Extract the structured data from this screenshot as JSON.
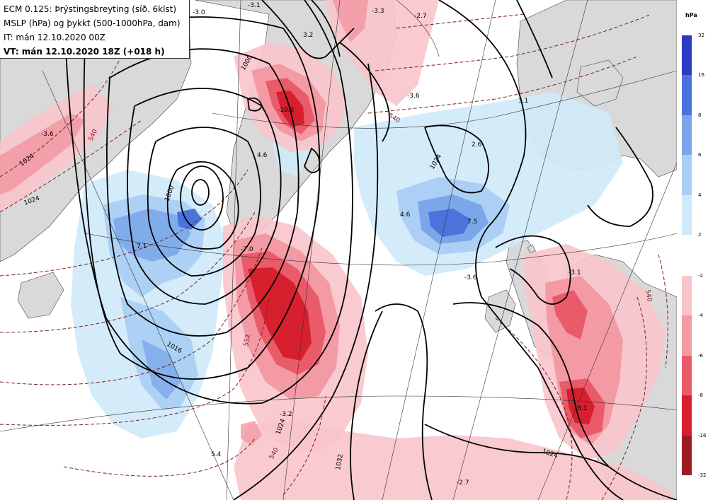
{
  "header": {
    "line1": "ECM 0.125: Þrýstingsbreyting (síð. 6klst)",
    "line2": "MSLP (hPa) og þykkt (500-1000hPa, dam)",
    "line3": "IT: mán 12.10.2020 00Z",
    "line4": "VT: mán 12.10.2020 18Z (+018 h)"
  },
  "legend": {
    "unit": "hPa",
    "rising_scale": {
      "colors": [
        "#2b3bc4",
        "#4a73dc",
        "#7ba7ea",
        "#a9cef4",
        "#cfe9fa"
      ],
      "ticks": [
        "32",
        "16",
        "8",
        "6",
        "4",
        "2"
      ]
    },
    "falling_scale": {
      "colors": [
        "#f8c4cb",
        "#f39aa5",
        "#ea5b6a",
        "#d6202e",
        "#9b1c22"
      ],
      "ticks": [
        "-2",
        "-4",
        "-6",
        "-8",
        "-16",
        "-32"
      ]
    }
  },
  "map_labels": {
    "isobars": [
      "1000",
      "1000",
      "1016",
      "1024",
      "1024",
      "1024",
      "1024",
      "1032",
      "1024"
    ],
    "thickness": [
      "540",
      "540",
      "552",
      "540",
      "540"
    ],
    "tendencies": [
      "-3.0",
      "-3.1",
      "-3.3",
      "-2.7",
      "3.2",
      "-3.6",
      "-3.6",
      "-10.6",
      "4.6",
      "3.1",
      "2.6",
      "7.1",
      "-7.0",
      "4.6",
      "7.5",
      "-3.6",
      "-3.1",
      "-8.1",
      "-3.2",
      "5.4",
      "-2.7"
    ]
  }
}
